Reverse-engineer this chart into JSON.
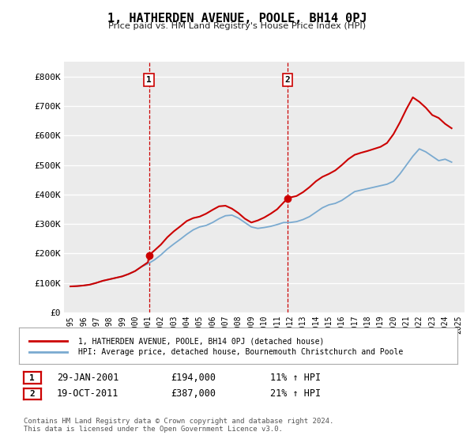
{
  "title": "1, HATHERDEN AVENUE, POOLE, BH14 0PJ",
  "subtitle": "Price paid vs. HM Land Registry's House Price Index (HPI)",
  "ylim": [
    0,
    850000
  ],
  "yticks": [
    0,
    100000,
    200000,
    300000,
    400000,
    500000,
    600000,
    700000,
    800000
  ],
  "ytick_labels": [
    "£0",
    "£100K",
    "£200K",
    "£300K",
    "£400K",
    "£500K",
    "£600K",
    "£700K",
    "£800K"
  ],
  "background_color": "#ffffff",
  "plot_bg_color": "#ebebeb",
  "grid_color": "#ffffff",
  "sale_color": "#cc0000",
  "hpi_color": "#7aaad0",
  "marker_color": "#cc0000",
  "vline_color": "#cc0000",
  "sale1_year": 2001.08,
  "sale1_price": 194000,
  "sale1_label": "1",
  "sale2_year": 2011.8,
  "sale2_price": 387000,
  "sale2_label": "2",
  "legend_sale": "1, HATHERDEN AVENUE, POOLE, BH14 0PJ (detached house)",
  "legend_hpi": "HPI: Average price, detached house, Bournemouth Christchurch and Poole",
  "table_row1": [
    "1",
    "29-JAN-2001",
    "£194,000",
    "11% ↑ HPI"
  ],
  "table_row2": [
    "2",
    "19-OCT-2011",
    "£387,000",
    "21% ↑ HPI"
  ],
  "footer": "Contains HM Land Registry data © Crown copyright and database right 2024.\nThis data is licensed under the Open Government Licence v3.0.",
  "hpi_years": [
    1995,
    1995.5,
    1996,
    1996.5,
    1997,
    1997.5,
    1998,
    1998.5,
    1999,
    1999.5,
    2000,
    2000.5,
    2001,
    2001.5,
    2002,
    2002.5,
    2003,
    2003.5,
    2004,
    2004.5,
    2005,
    2005.5,
    2006,
    2006.5,
    2007,
    2007.5,
    2008,
    2008.5,
    2009,
    2009.5,
    2010,
    2010.5,
    2011,
    2011.5,
    2012,
    2012.5,
    2013,
    2013.5,
    2014,
    2014.5,
    2015,
    2015.5,
    2016,
    2016.5,
    2017,
    2017.5,
    2018,
    2018.5,
    2019,
    2019.5,
    2020,
    2020.5,
    2021,
    2021.5,
    2022,
    2022.5,
    2023,
    2023.5,
    2024,
    2024.5
  ],
  "hpi_values": [
    88000,
    89000,
    91000,
    94000,
    100000,
    107000,
    112000,
    117000,
    122000,
    130000,
    140000,
    155000,
    165000,
    178000,
    195000,
    215000,
    232000,
    248000,
    265000,
    280000,
    290000,
    295000,
    305000,
    318000,
    328000,
    330000,
    320000,
    305000,
    290000,
    285000,
    288000,
    292000,
    298000,
    305000,
    305000,
    308000,
    315000,
    325000,
    340000,
    355000,
    365000,
    370000,
    380000,
    395000,
    410000,
    415000,
    420000,
    425000,
    430000,
    435000,
    445000,
    470000,
    500000,
    530000,
    555000,
    545000,
    530000,
    515000,
    520000,
    510000
  ],
  "sale_years": [
    1995,
    1995.5,
    1996,
    1996.5,
    1997,
    1997.5,
    1998,
    1998.5,
    1999,
    1999.5,
    2000,
    2000.5,
    2001,
    2001.08,
    2001.5,
    2002,
    2002.5,
    2003,
    2003.5,
    2004,
    2004.5,
    2005,
    2005.5,
    2006,
    2006.5,
    2007,
    2007.5,
    2008,
    2008.5,
    2009,
    2009.5,
    2010,
    2010.5,
    2011,
    2011.8,
    2012,
    2012.5,
    2013,
    2013.5,
    2014,
    2014.5,
    2015,
    2015.5,
    2016,
    2016.5,
    2017,
    2017.5,
    2018,
    2018.5,
    2019,
    2019.5,
    2020,
    2020.5,
    2021,
    2021.5,
    2022,
    2022.5,
    2023,
    2023.5,
    2024,
    2024.5
  ],
  "sale_values": [
    88000,
    89000,
    91000,
    94000,
    100000,
    107000,
    112000,
    117000,
    122000,
    130000,
    140000,
    155000,
    170000,
    194000,
    210000,
    230000,
    255000,
    275000,
    292000,
    310000,
    320000,
    325000,
    335000,
    348000,
    360000,
    362000,
    352000,
    337000,
    318000,
    305000,
    312000,
    322000,
    335000,
    350000,
    387000,
    390000,
    395000,
    408000,
    425000,
    445000,
    460000,
    470000,
    482000,
    500000,
    520000,
    535000,
    542000,
    548000,
    555000,
    562000,
    575000,
    605000,
    645000,
    690000,
    730000,
    715000,
    695000,
    670000,
    660000,
    640000,
    625000
  ],
  "xlim_left": 1994.5,
  "xlim_right": 2025.5,
  "xticks": [
    1995,
    1996,
    1997,
    1998,
    1999,
    2000,
    2001,
    2002,
    2003,
    2004,
    2005,
    2006,
    2007,
    2008,
    2009,
    2010,
    2011,
    2012,
    2013,
    2014,
    2015,
    2016,
    2017,
    2018,
    2019,
    2020,
    2021,
    2022,
    2023,
    2024,
    2025
  ]
}
